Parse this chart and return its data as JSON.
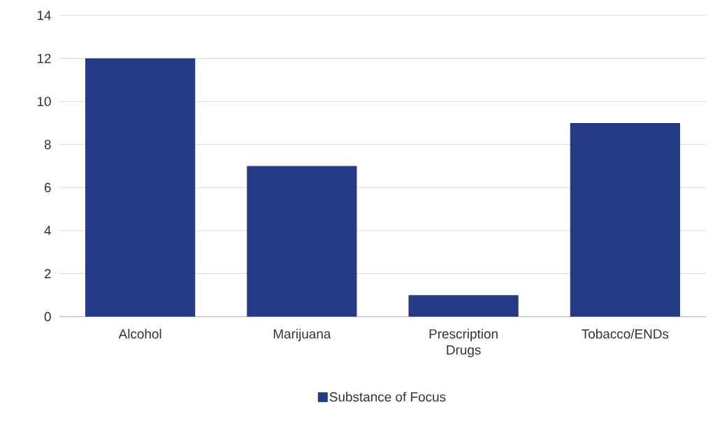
{
  "chart_data": {
    "type": "bar",
    "categories": [
      "Alcohol",
      "Marijuana",
      "Prescription Drugs",
      "Tobacco/ENDs"
    ],
    "series": [
      {
        "name": "Substance of Focus",
        "color": "#253b85",
        "values": [
          12,
          7,
          1,
          9
        ]
      }
    ],
    "ylim": [
      0,
      14
    ],
    "yticks": [
      0,
      2,
      4,
      6,
      8,
      10,
      12,
      14
    ],
    "grid": "y",
    "legend": "bottom"
  }
}
